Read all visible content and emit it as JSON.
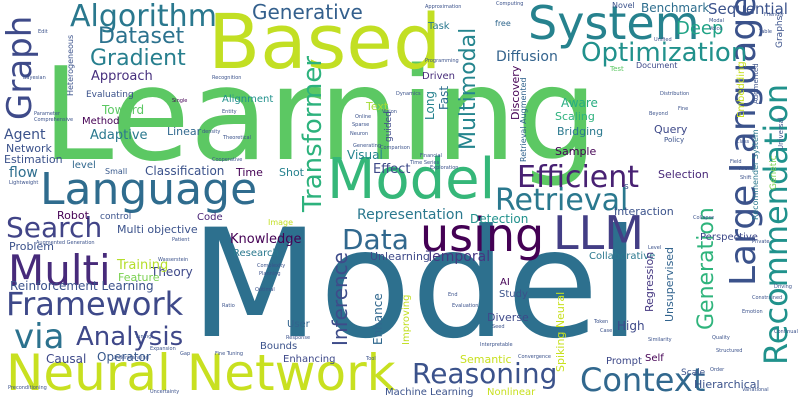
{
  "words": [
    {
      "text": "Learning",
      "color": "#5cc863"
    },
    {
      "text": "Model",
      "color": "#2d708e"
    },
    {
      "text": "Based",
      "color": "#c2df23"
    },
    {
      "text": "Language",
      "color": "#2f6c8e"
    },
    {
      "text": "Model",
      "color": "#35b779"
    },
    {
      "text": "Neural Network",
      "color": "#c8e020"
    },
    {
      "text": "System",
      "color": "#26828e"
    },
    {
      "text": "Large Language",
      "color": "#3b528b"
    },
    {
      "text": "Recommendation",
      "color": "#20928c"
    },
    {
      "text": "Algorithm",
      "color": "#2a788e"
    },
    {
      "text": "Graph",
      "color": "#3e4a89"
    },
    {
      "text": "Multi",
      "color": "#472a7a"
    },
    {
      "text": "LLM",
      "color": "#433e85"
    },
    {
      "text": "using",
      "color": "#440154"
    },
    {
      "text": "Framework",
      "color": "#3e4989"
    },
    {
      "text": "Context",
      "color": "#31688e"
    },
    {
      "text": "Reasoning",
      "color": "#3b528b"
    },
    {
      "text": "Efficient",
      "color": "#482173"
    },
    {
      "text": "Retrieval",
      "color": "#2a788e"
    },
    {
      "text": "Search",
      "color": "#414487"
    },
    {
      "text": "Optimization",
      "color": "#21918c"
    },
    {
      "text": "Dataset",
      "color": "#2c728e"
    },
    {
      "text": "Gradient",
      "color": "#277f8e"
    },
    {
      "text": "Analysis",
      "color": "#3f4889"
    },
    {
      "text": "via",
      "color": "#2c728e"
    },
    {
      "text": "Data",
      "color": "#31688e"
    },
    {
      "text": "Generative",
      "color": "#34608d"
    },
    {
      "text": "Multimodal",
      "color": "#25858e"
    },
    {
      "text": "Transformer",
      "color": "#2db27d"
    },
    {
      "text": "Inference",
      "color": "#3e4c8a"
    },
    {
      "text": "Generation",
      "color": "#2fb47c"
    },
    {
      "text": "Representation",
      "color": "#2a788e"
    },
    {
      "text": "Reinforcement Learning",
      "color": "#3b528b"
    },
    {
      "text": "Knowledge",
      "color": "#440154"
    },
    {
      "text": "Diffusion",
      "color": "#33638d"
    },
    {
      "text": "Approach",
      "color": "#472f7d"
    },
    {
      "text": "Temporal",
      "color": "#453781"
    },
    {
      "text": "Deep",
      "color": "#20a386"
    },
    {
      "text": "Sequential",
      "color": "#3b528b"
    },
    {
      "text": "Benchmark",
      "color": "#2e6e8e"
    },
    {
      "text": "Enhance",
      "color": "#31688e"
    },
    {
      "text": "Adaptive",
      "color": "#2a788e"
    },
    {
      "text": "Agent",
      "color": "#3b528b"
    },
    {
      "text": "Network",
      "color": "#3b528b"
    },
    {
      "text": "Estimation",
      "color": "#3b528b"
    },
    {
      "text": "flow",
      "color": "#2e6e8e"
    },
    {
      "text": "Robot",
      "color": "#440154"
    },
    {
      "text": "Problem",
      "color": "#3b528b"
    },
    {
      "text": "Causal",
      "color": "#3e4989"
    },
    {
      "text": "Operator",
      "color": "#38598c"
    },
    {
      "text": "Theory",
      "color": "#3e4989"
    },
    {
      "text": "Training",
      "color": "#b5de2b"
    },
    {
      "text": "Feature",
      "color": "#7ad151"
    },
    {
      "text": "Multi objective",
      "color": "#3b528b"
    },
    {
      "text": "Classification",
      "color": "#3b528b"
    },
    {
      "text": "Time",
      "color": "#440154"
    },
    {
      "text": "Shot",
      "color": "#26828e"
    },
    {
      "text": "Effect",
      "color": "#3e4989"
    },
    {
      "text": "Visual",
      "color": "#25858e"
    },
    {
      "text": "Sample",
      "color": "#440154"
    },
    {
      "text": "Selection",
      "color": "#482878"
    },
    {
      "text": "Interaction",
      "color": "#3b528b"
    },
    {
      "text": "Detection",
      "color": "#21918c"
    },
    {
      "text": "Unlearning",
      "color": "#3e4989"
    },
    {
      "text": "Collaborative",
      "color": "#2a788e"
    },
    {
      "text": "Perspective",
      "color": "#3e4989"
    },
    {
      "text": "Regression",
      "color": "#453781"
    },
    {
      "text": "Unsupervised",
      "color": "#32648e"
    },
    {
      "text": "Scaling",
      "color": "#2db27d"
    },
    {
      "text": "Bridging",
      "color": "#2a788e"
    },
    {
      "text": "Query",
      "color": "#3e4989"
    },
    {
      "text": "Aware",
      "color": "#27ad81"
    },
    {
      "text": "Policy",
      "color": "#3b528b"
    },
    {
      "text": "Text",
      "color": "#a5db36"
    },
    {
      "text": "Fast",
      "color": "#2e6e8e"
    },
    {
      "text": "Long",
      "color": "#26828e"
    },
    {
      "text": "Discovery",
      "color": "#440154"
    },
    {
      "text": "Driven",
      "color": "#472c7a"
    },
    {
      "text": "Task",
      "color": "#2a788e"
    },
    {
      "text": "Novel",
      "color": "#3b528b"
    },
    {
      "text": "Document",
      "color": "#3e4989"
    },
    {
      "text": "Evaluating",
      "color": "#3b528b"
    },
    {
      "text": "Toward",
      "color": "#5cc863"
    },
    {
      "text": "Method",
      "color": "#440154"
    },
    {
      "text": "Alignment",
      "color": "#21918c"
    },
    {
      "text": "Linear",
      "color": "#31688e"
    },
    {
      "text": "Small",
      "color": "#38598c"
    },
    {
      "text": "level",
      "color": "#31688e"
    },
    {
      "text": "Code",
      "color": "#482475"
    },
    {
      "text": "control",
      "color": "#3b528b"
    },
    {
      "text": "Image",
      "color": "#c2df23"
    },
    {
      "text": "Research",
      "color": "#2a788e"
    },
    {
      "text": "User",
      "color": "#33638d"
    },
    {
      "text": "Bounds",
      "color": "#3b528b"
    },
    {
      "text": "Enhancing",
      "color": "#3e4989"
    },
    {
      "text": "Semantic",
      "color": "#c8e020"
    },
    {
      "text": "Machine Learning",
      "color": "#3b528b"
    },
    {
      "text": "Nonlinear",
      "color": "#c8e020"
    },
    {
      "text": "Diverse",
      "color": "#3e4989"
    },
    {
      "text": "Study",
      "color": "#3b528b"
    },
    {
      "text": "AI",
      "color": "#440154"
    },
    {
      "text": "Improving",
      "color": "#c2df23"
    },
    {
      "text": "Spiking Neural",
      "color": "#c8e020"
    },
    {
      "text": "High",
      "color": "#3e4989"
    },
    {
      "text": "Prompt",
      "color": "#3e4989"
    },
    {
      "text": "Self",
      "color": "#440154"
    },
    {
      "text": "Scale",
      "color": "#3b528b"
    },
    {
      "text": "Hierarchical",
      "color": "#3b528b"
    },
    {
      "text": "Embedding",
      "color": "#c8e020"
    },
    {
      "text": "Augmented",
      "color": "#3b528b"
    },
    {
      "text": "Retrieval Augmented",
      "color": "#32648e"
    },
    {
      "text": "Recommender System",
      "color": "#2a788e"
    },
    {
      "text": "Genetic",
      "color": "#7ad151"
    },
    {
      "text": "Universal",
      "color": "#3b528b"
    },
    {
      "text": "guided",
      "color": "#3e4989"
    },
    {
      "text": "Heterogeneous",
      "color": "#3b528b"
    },
    {
      "text": "free",
      "color": "#31688e"
    },
    {
      "text": "Test",
      "color": "#5cc863"
    },
    {
      "text": "Graphs",
      "color": "#3b528b"
    },
    {
      "text": "Lightweight",
      "color": "#3b528b"
    },
    {
      "text": "Augmented Generation",
      "color": "#3b528b"
    },
    {
      "text": "Recognition",
      "color": "#3b528b"
    },
    {
      "text": "Single",
      "color": "#440154"
    },
    {
      "text": "Online",
      "color": "#3b528b"
    },
    {
      "text": "Vision",
      "color": "#3b528b"
    },
    {
      "text": "Financial",
      "color": "#3b528b"
    },
    {
      "text": "Exploration",
      "color": "#3b528b"
    },
    {
      "text": "Time Series",
      "color": "#3b528b"
    },
    {
      "text": "Complexity",
      "color": "#3b528b"
    },
    {
      "text": "Planning",
      "color": "#3b528b"
    },
    {
      "text": "Optimal",
      "color": "#3b528b"
    },
    {
      "text": "Fine Tuning",
      "color": "#3b528b"
    },
    {
      "text": "Tool",
      "color": "#3b528b"
    },
    {
      "text": "Convergence",
      "color": "#3b528b"
    },
    {
      "text": "Order",
      "color": "#3b528b"
    },
    {
      "text": "Distribution",
      "color": "#3b528b"
    },
    {
      "text": "Fine",
      "color": "#3b528b"
    },
    {
      "text": "Beyond",
      "color": "#3b528b"
    },
    {
      "text": "Approximation",
      "color": "#3b528b"
    },
    {
      "text": "Computing",
      "color": "#3b528b"
    },
    {
      "text": "Unified",
      "color": "#3b528b"
    },
    {
      "text": "Friendly",
      "color": "#3b528b"
    },
    {
      "text": "Table",
      "color": "#3b528b"
    },
    {
      "text": "Modal",
      "color": "#3b528b"
    },
    {
      "text": "Voice",
      "color": "#3b528b"
    },
    {
      "text": "Programming",
      "color": "#3b528b"
    },
    {
      "text": "Parameter",
      "color": "#3b528b"
    },
    {
      "text": "Comprehensive",
      "color": "#3b528b"
    },
    {
      "text": "Bayesian",
      "color": "#3b528b"
    },
    {
      "text": "Edit",
      "color": "#3b528b"
    },
    {
      "text": "Theoretical",
      "color": "#3b528b"
    },
    {
      "text": "Cooperative",
      "color": "#3b528b"
    },
    {
      "text": "Generating",
      "color": "#3b528b"
    },
    {
      "text": "Sparse",
      "color": "#3b528b"
    },
    {
      "text": "Neuron",
      "color": "#3b528b"
    },
    {
      "text": "Entity",
      "color": "#3b528b"
    },
    {
      "text": "density",
      "color": "#3b528b"
    },
    {
      "text": "Dynamics",
      "color": "#3b528b"
    },
    {
      "text": "Comparison",
      "color": "#3b528b"
    },
    {
      "text": "Patient",
      "color": "#3b528b"
    },
    {
      "text": "Wasserstein",
      "color": "#3b528b"
    },
    {
      "text": "Understanding",
      "color": "#3b528b"
    },
    {
      "text": "Ratio",
      "color": "#3b528b"
    },
    {
      "text": "Tuning",
      "color": "#3b528b"
    },
    {
      "text": "Expansion",
      "color": "#3b528b"
    },
    {
      "text": "Gap",
      "color": "#3b528b"
    },
    {
      "text": "Evaluation",
      "color": "#3b528b"
    },
    {
      "text": "Seed",
      "color": "#3b528b"
    },
    {
      "text": "Interpretable",
      "color": "#3b528b"
    },
    {
      "text": "Response",
      "color": "#3b528b"
    },
    {
      "text": "Token",
      "color": "#3b528b"
    },
    {
      "text": "Case",
      "color": "#3b528b"
    },
    {
      "text": "Similarity",
      "color": "#3b528b"
    },
    {
      "text": "Quality",
      "color": "#3b528b"
    },
    {
      "text": "Structured",
      "color": "#3b528b"
    },
    {
      "text": "Private",
      "color": "#3b528b"
    },
    {
      "text": "Collapse",
      "color": "#3b528b"
    },
    {
      "text": "Constrained",
      "color": "#3b528b"
    },
    {
      "text": "Emotion",
      "color": "#3b528b"
    },
    {
      "text": "Variational",
      "color": "#3b528b"
    },
    {
      "text": "Driving",
      "color": "#3b528b"
    },
    {
      "text": "Continual",
      "color": "#3b528b"
    },
    {
      "text": "Field",
      "color": "#3b528b"
    },
    {
      "text": "Class",
      "color": "#3b528b"
    },
    {
      "text": "Preconditioning",
      "color": "#3b528b"
    },
    {
      "text": "Uncertainty",
      "color": "#3b528b"
    },
    {
      "text": "End",
      "color": "#3b528b"
    },
    {
      "text": "Arena",
      "color": "#3b528b"
    },
    {
      "text": "Level",
      "color": "#3b528b"
    },
    {
      "text": "Shift",
      "color": "#3b528b"
    },
    {
      "text": "s",
      "color": "#3b528b"
    }
  ]
}
